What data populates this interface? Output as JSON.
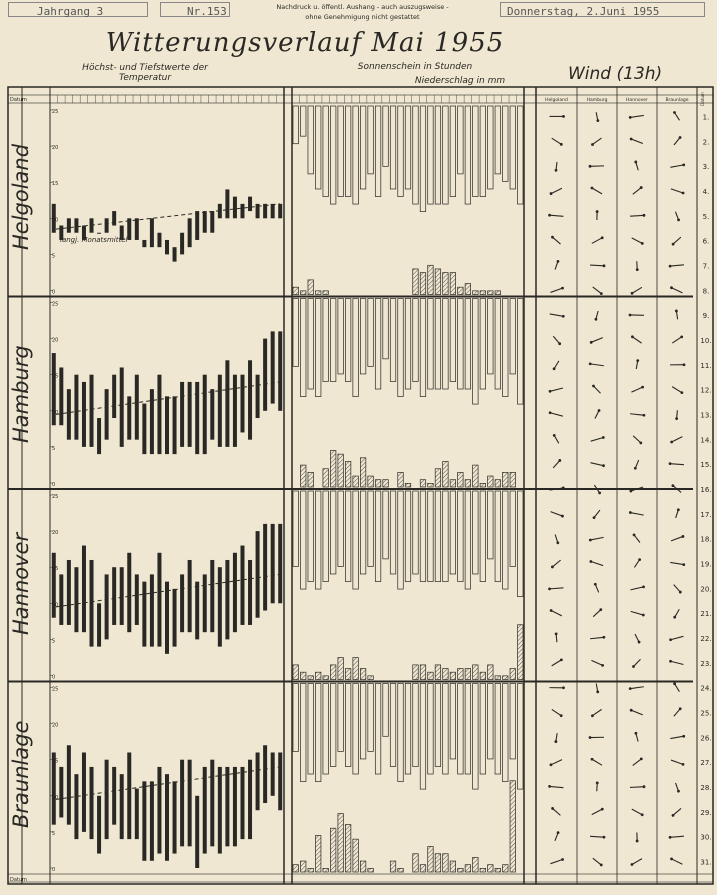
{
  "header": {
    "left": "Jahrgang 3",
    "issue": "Nr.153",
    "notice_line1": "Nachdruck u. öffentl. Aushang - auch auszugsweise -",
    "notice_line2": "ohne Genehmigung nicht gestattet",
    "date": "Donnerstag, 2.Juni 1955"
  },
  "title": "Witterungsverlauf  Mai  1955",
  "subtitle_temp": "Höchst- und Tiefstwerte der Temperatur",
  "subtitle_sun": "Sonnenschein in Stunden",
  "subtitle_rain": "Niederschlag  in mm",
  "wind_title": "Wind (13h)",
  "legend_mean": "langj. Monatsmittel",
  "datum_label": "Datum",
  "col_headers": {
    "helgoland": "Helgoland",
    "hamburg": "Hamburg",
    "hannover": "Hannover",
    "braunlage": "Braunlage",
    "datum": "Datum"
  },
  "colors": {
    "paper": "#efe7d2",
    "ink": "#2a2824"
  },
  "chart_data": {
    "type": "bar",
    "days": [
      1,
      2,
      3,
      4,
      5,
      6,
      7,
      8,
      9,
      10,
      11,
      12,
      13,
      14,
      15,
      16,
      17,
      18,
      19,
      20,
      21,
      22,
      23,
      24,
      25,
      26,
      27,
      28,
      29,
      30,
      31
    ],
    "y_ticks_temp": [
      0,
      5,
      10,
      15,
      20,
      25
    ],
    "stations": [
      {
        "name": "Helgoland",
        "temp_max": [
          12,
          9,
          10,
          10,
          9,
          10,
          8,
          10,
          11,
          9,
          10,
          10,
          7,
          10,
          8,
          7,
          6,
          8,
          10,
          11,
          11,
          11,
          12,
          14,
          13,
          12,
          13,
          12,
          12,
          12,
          12
        ],
        "temp_min": [
          8,
          7,
          8,
          8,
          7,
          8,
          8,
          8,
          9,
          7,
          7,
          7,
          6,
          6,
          6,
          5,
          4,
          5,
          6,
          7,
          8,
          8,
          10,
          10,
          10,
          10,
          11,
          10,
          10,
          10,
          10
        ],
        "sunshine": [
          5,
          4,
          9,
          11,
          12,
          13,
          12,
          12,
          13,
          11,
          9,
          12,
          8,
          11,
          12,
          11,
          13,
          14,
          13,
          13,
          13,
          12,
          9,
          13,
          12,
          12,
          11,
          9,
          10,
          11,
          13
        ],
        "precip": [
          2,
          1,
          4,
          1,
          1,
          0,
          0,
          0,
          0,
          0,
          0,
          0,
          0,
          0,
          0,
          0,
          7,
          6,
          8,
          7,
          6,
          6,
          2,
          3,
          1,
          1,
          1,
          1,
          0,
          0,
          0
        ]
      },
      {
        "name": "Hamburg",
        "temp_max": [
          18,
          16,
          13,
          15,
          14,
          15,
          9,
          13,
          15,
          16,
          12,
          15,
          11,
          13,
          15,
          12,
          12,
          14,
          14,
          14,
          15,
          13,
          15,
          17,
          15,
          15,
          17,
          15,
          20,
          21,
          21
        ],
        "temp_min": [
          8,
          8,
          6,
          6,
          5,
          5,
          4,
          6,
          9,
          5,
          6,
          6,
          4,
          4,
          4,
          4,
          4,
          5,
          5,
          4,
          4,
          6,
          5,
          5,
          5,
          7,
          6,
          9,
          10,
          11,
          10
        ],
        "sunshine": [
          9,
          13,
          12,
          13,
          11,
          11,
          10,
          11,
          13,
          10,
          9,
          12,
          8,
          11,
          13,
          12,
          11,
          13,
          12,
          12,
          12,
          11,
          12,
          12,
          14,
          12,
          10,
          12,
          13,
          10,
          14
        ],
        "precip": [
          0,
          6,
          4,
          0,
          5,
          10,
          9,
          7,
          3,
          8,
          3,
          2,
          2,
          0,
          4,
          1,
          0,
          2,
          1,
          5,
          7,
          2,
          4,
          2,
          6,
          1,
          3,
          2,
          4,
          4,
          0
        ]
      },
      {
        "name": "Hannover",
        "temp_max": [
          17,
          14,
          16,
          15,
          18,
          16,
          10,
          14,
          15,
          15,
          17,
          14,
          13,
          14,
          17,
          13,
          12,
          14,
          16,
          13,
          14,
          16,
          15,
          16,
          17,
          18,
          16,
          20,
          21,
          21,
          21
        ],
        "temp_min": [
          8,
          7,
          7,
          6,
          6,
          4,
          4,
          5,
          7,
          7,
          6,
          7,
          4,
          4,
          4,
          3,
          4,
          6,
          6,
          5,
          6,
          6,
          4,
          5,
          6,
          7,
          7,
          8,
          9,
          10,
          10
        ],
        "sunshine": [
          10,
          13,
          12,
          13,
          12,
          11,
          10,
          12,
          13,
          11,
          10,
          12,
          9,
          11,
          13,
          12,
          11,
          12,
          12,
          12,
          12,
          11,
          12,
          13,
          11,
          12,
          9,
          12,
          13,
          10,
          14
        ],
        "precip": [
          4,
          2,
          1,
          2,
          1,
          4,
          6,
          3,
          6,
          3,
          1,
          0,
          0,
          0,
          0,
          0,
          4,
          4,
          2,
          4,
          3,
          2,
          3,
          3,
          4,
          2,
          4,
          1,
          1,
          3,
          15
        ]
      },
      {
        "name": "Braunlage",
        "temp_max": [
          16,
          14,
          17,
          13,
          16,
          14,
          10,
          15,
          14,
          13,
          16,
          11,
          12,
          12,
          14,
          13,
          12,
          15,
          15,
          10,
          14,
          15,
          14,
          14,
          14,
          14,
          15,
          16,
          17,
          16,
          16
        ],
        "temp_min": [
          6,
          7,
          6,
          4,
          5,
          4,
          2,
          4,
          6,
          4,
          4,
          4,
          1,
          1,
          2,
          1,
          2,
          3,
          3,
          0,
          2,
          3,
          2,
          3,
          3,
          4,
          4,
          8,
          9,
          10,
          8
        ],
        "sunshine": [
          9,
          13,
          12,
          13,
          12,
          11,
          9,
          11,
          12,
          10,
          9,
          12,
          7,
          11,
          13,
          12,
          11,
          14,
          12,
          11,
          12,
          10,
          12,
          12,
          14,
          12,
          10,
          12,
          13,
          10,
          14
        ],
        "precip": [
          2,
          3,
          1,
          10,
          1,
          12,
          16,
          13,
          9,
          3,
          1,
          0,
          0,
          3,
          1,
          0,
          5,
          2,
          7,
          5,
          5,
          3,
          1,
          2,
          4,
          1,
          2,
          1,
          2,
          25,
          0
        ]
      }
    ]
  }
}
